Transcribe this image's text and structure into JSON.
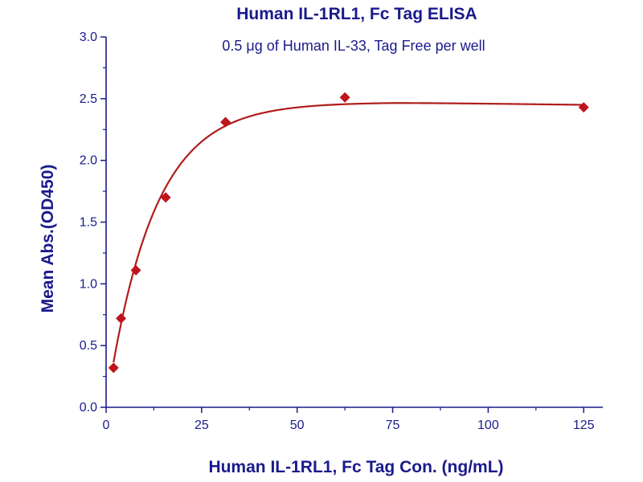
{
  "chart_data": {
    "type": "scatter",
    "title": "Human IL-1RL1, Fc Tag ELISA",
    "subtitle": "0.5 μg of Human IL-33, Tag Free per well",
    "xlabel": "Human IL-1RL1, Fc Tag Con. (ng/mL)",
    "ylabel": "Mean Abs.(OD450)",
    "xlim": [
      0,
      130
    ],
    "ylim": [
      0,
      3.0
    ],
    "x_ticks": [
      0,
      25,
      50,
      75,
      100,
      125
    ],
    "y_ticks": [
      "0.0",
      "0.5",
      "1.0",
      "1.5",
      "2.0",
      "2.5",
      "3.0"
    ],
    "grid": false,
    "legend": "none",
    "series": [
      {
        "x": [
          1.95,
          3.9,
          7.8,
          15.6,
          31.25,
          62.5,
          125
        ],
        "y": [
          0.32,
          0.72,
          1.11,
          1.7,
          2.31,
          2.51,
          2.43
        ],
        "marker": "diamond",
        "fit_curve": true
      }
    ],
    "colors": {
      "text": "#1a1a8c",
      "axis": "#1a1a8c",
      "marker": "#c0141c",
      "curve": "#b01c1c"
    }
  }
}
